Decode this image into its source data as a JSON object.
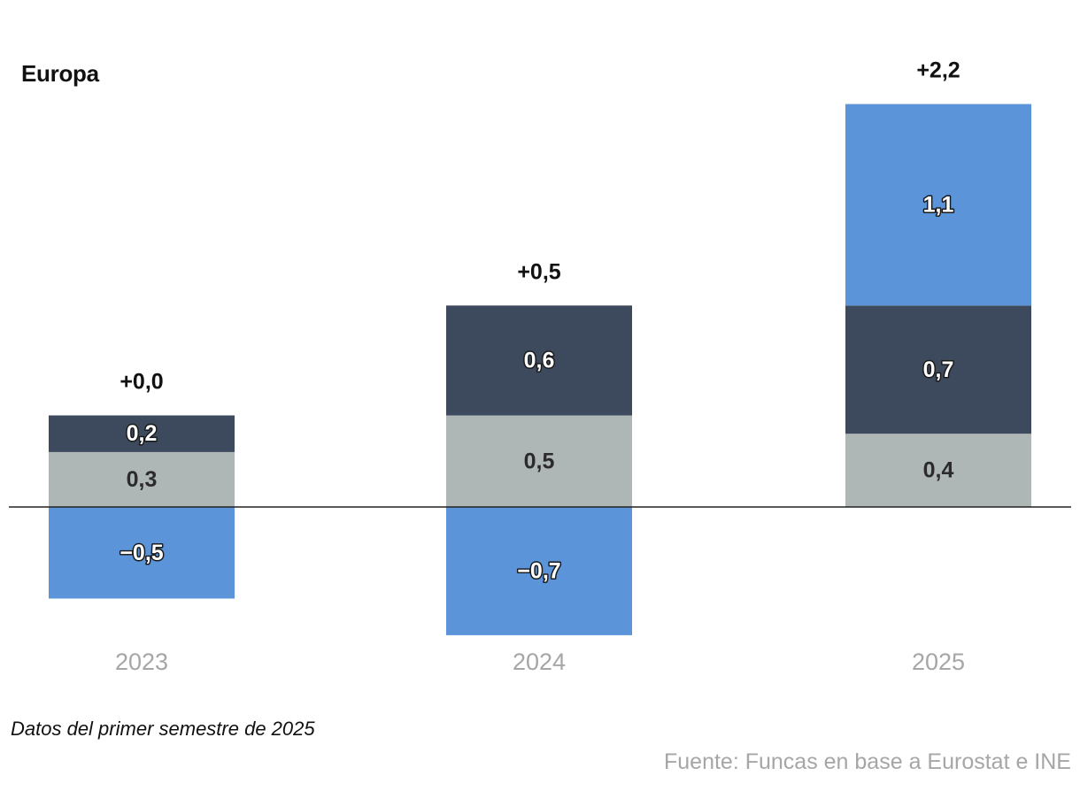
{
  "chart_data": {
    "type": "bar",
    "stacked": true,
    "title": "Europa",
    "categories": [
      "2023",
      "2024",
      "2025"
    ],
    "series": [
      {
        "name": "light-gray",
        "color": "#aeb6b6",
        "values": [
          0.3,
          0.5,
          0.4
        ],
        "labels": [
          "0,3",
          "0,5",
          "0,4"
        ]
      },
      {
        "name": "dark-navy",
        "color": "#3d4a5e",
        "values": [
          0.2,
          0.6,
          0.7
        ],
        "labels": [
          "0,2",
          "0,6",
          "0,7"
        ]
      },
      {
        "name": "blue",
        "color": "#5b94d9",
        "values": [
          -0.5,
          -0.7,
          1.1
        ],
        "labels": [
          "−0,5",
          "−0,7",
          "1,1"
        ]
      }
    ],
    "totals": [
      0.0,
      0.5,
      2.2
    ],
    "total_labels": [
      "+0,0",
      "+0,5",
      "+2,2"
    ],
    "ylim": [
      -0.7,
      2.2
    ],
    "xlabel": "",
    "ylabel": "",
    "grid": false,
    "legend": "none"
  },
  "note": "Datos del primer semestre de 2025",
  "source": "Fuente: Funcas en base a Eurostat e INE"
}
